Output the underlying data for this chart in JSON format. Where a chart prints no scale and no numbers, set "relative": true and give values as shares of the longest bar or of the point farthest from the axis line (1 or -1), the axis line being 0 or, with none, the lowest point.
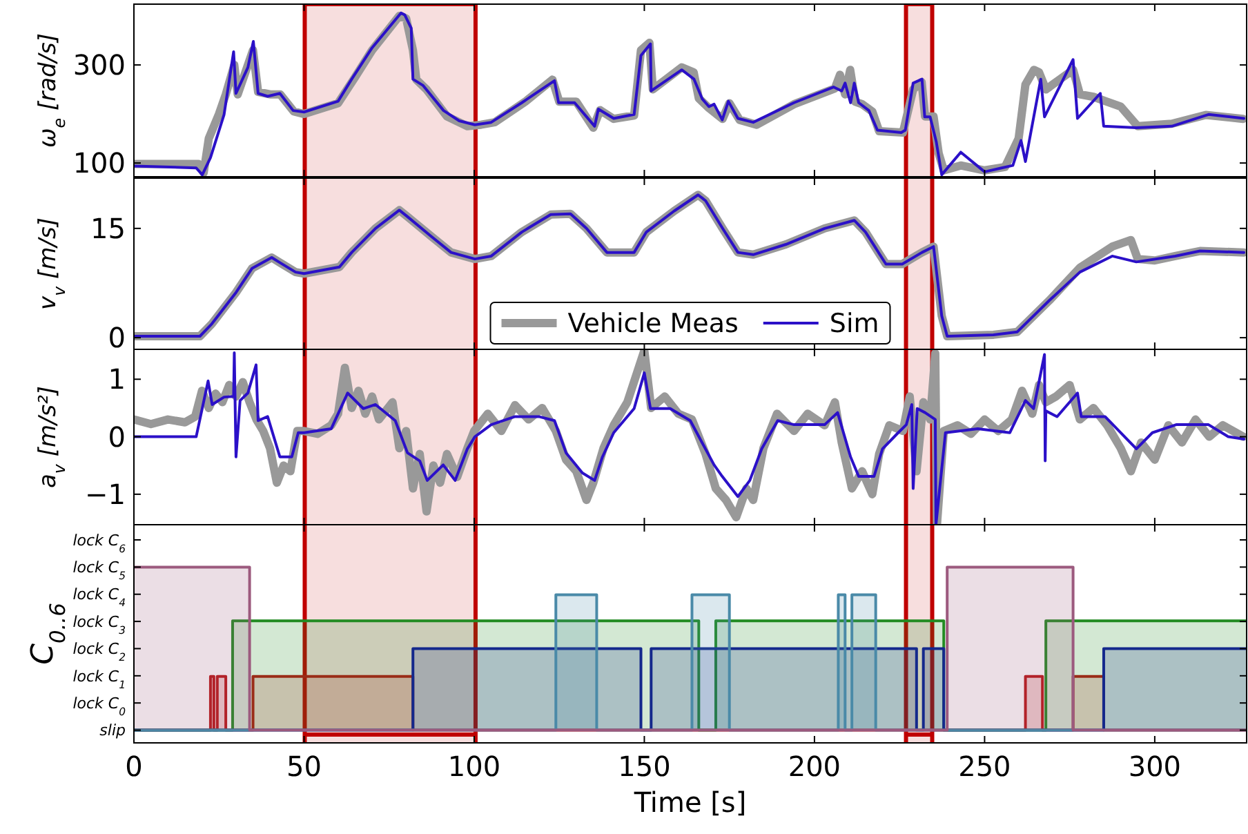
{
  "chart_data": [
    {
      "type": "line",
      "ylabel": "ω$_{e}$ [rad/s]",
      "xlim": [
        0,
        327
      ],
      "xticks": [
        0,
        50,
        100,
        150,
        200,
        250,
        300
      ],
      "ylim": [
        72,
        424
      ],
      "yticks": [
        100,
        300
      ],
      "tick_labels": "y",
      "bands": [
        {
          "axis": "x",
          "from": 50.2,
          "to": 100.4,
          "color": "#c00000"
        },
        {
          "axis": "x",
          "from": 226.9,
          "to": 234.6,
          "color": "#c00000"
        }
      ],
      "series": [
        {
          "color": "#999999",
          "x": [
            0,
            19,
            20.5,
            22,
            25,
            27,
            29.5,
            30.5,
            33,
            35,
            36.5,
            40,
            43,
            47,
            50,
            60,
            65,
            70,
            78,
            80,
            82,
            83,
            86,
            92,
            98,
            102,
            106,
            115,
            123,
            125,
            130,
            135,
            137,
            141,
            147,
            149,
            151.5,
            152.5,
            161,
            164.5,
            166,
            169,
            173,
            175,
            178,
            183,
            194,
            206,
            207.5,
            209,
            210.5,
            212,
            214,
            217,
            219,
            226,
            229,
            231.5,
            232.5,
            235,
            236.5,
            238,
            243,
            250,
            256,
            260,
            262,
            264.5,
            266,
            268,
            272,
            276,
            278,
            282,
            286,
            290,
            295,
            305,
            315,
            326
          ],
          "values": [
            98,
            98,
            80,
            150,
            200,
            240,
            300,
            240,
            290,
            330,
            245,
            240,
            240,
            205,
            200,
            222,
            275,
            330,
            400,
            395,
            330,
            270,
            250,
            195,
            175,
            178,
            183,
            225,
            270,
            225,
            225,
            172,
            208,
            190,
            197,
            330,
            345,
            250,
            295,
            285,
            232,
            212,
            190,
            222,
            188,
            178,
            220,
            252,
            280,
            240,
            290,
            225,
            220,
            205,
            165,
            162,
            250,
            265,
            195,
            195,
            120,
            85,
            95,
            85,
            92,
            150,
            260,
            290,
            285,
            250,
            270,
            290,
            240,
            235,
            225,
            215,
            175,
            180,
            198,
            190
          ]
        },
        {
          "color": "#2b10c8",
          "x": [
            0,
            18.3,
            20.1,
            22.5,
            26.5,
            29.3,
            30,
            33.5,
            35.1,
            36.5,
            39.3,
            42.9,
            46.8,
            50,
            60,
            64,
            70,
            78.5,
            79.6,
            81.5,
            82,
            85,
            91,
            95.6,
            100.2,
            105,
            114,
            123.6,
            124.8,
            129.5,
            135.4,
            136.5,
            141,
            147,
            149,
            151.8,
            152,
            161,
            164.6,
            167,
            169,
            170.5,
            172.9,
            174.7,
            177.5,
            182,
            194,
            205.6,
            208,
            209,
            210.6,
            211.7,
            213,
            216,
            218.5,
            225.5,
            226.7,
            229,
            231.6,
            232.4,
            234,
            235.8,
            237.4,
            243,
            250,
            255,
            258.3,
            260.7,
            262,
            266.5,
            267.6,
            276,
            277.3,
            284,
            285,
            294.6,
            305,
            315.8,
            326.2
          ],
          "values": [
            94,
            90,
            76,
            111,
            199,
            327,
            242,
            295,
            348,
            242,
            236,
            242,
            207,
            204,
            226,
            271,
            335,
            406,
            402,
            375,
            271,
            258,
            207,
            186,
            178,
            183,
            223,
            268,
            223,
            223,
            175,
            210,
            191,
            199,
            319,
            343,
            247,
            290,
            271,
            231,
            215,
            220,
            188,
            226,
            191,
            183,
            223,
            255,
            247,
            263,
            223,
            263,
            223,
            207,
            167,
            162,
            167,
            263,
            271,
            194,
            194,
            143,
            76,
            122,
            82,
            90,
            95,
            146,
            103,
            271,
            194,
            311,
            191,
            242,
            175,
            172,
            175,
            199,
            191
          ]
        }
      ]
    },
    {
      "type": "line",
      "ylabel": "v$_{v}$ [m/s]",
      "xlim": [
        0,
        327
      ],
      "xticks": [
        0,
        50,
        100,
        150,
        200,
        250,
        300
      ],
      "ylim": [
        -1.6,
        21.9
      ],
      "yticks": [
        0,
        15
      ],
      "tick_labels": "y",
      "legend": "bottom",
      "bands": [
        {
          "axis": "x",
          "from": 50.2,
          "to": 100.4,
          "color": "#c00000"
        },
        {
          "axis": "x",
          "from": 226.9,
          "to": 234.6,
          "color": "#c00000"
        }
      ],
      "series": [
        {
          "name": "Vehicle Meas",
          "color": "#999999",
          "x": [
            0,
            19.4,
            22.9,
            30,
            34.7,
            40.5,
            42.9,
            47.5,
            50,
            60.4,
            64,
            71,
            78,
            80.4,
            87.4,
            93.2,
            100.2,
            105,
            114,
            122.5,
            128.3,
            133,
            139,
            147,
            150.6,
            158.8,
            165.8,
            168,
            173,
            177.5,
            182,
            191.6,
            203,
            211.7,
            215,
            221,
            225.8,
            231.6,
            235,
            237.4,
            239,
            252.6,
            259.6,
            269,
            278,
            287.5,
            293,
            295,
            300,
            306,
            313.3,
            326.2
          ],
          "values": [
            0.2,
            0.2,
            1.9,
            6.2,
            9.5,
            11,
            10.3,
            9,
            8.8,
            9.7,
            11.7,
            15,
            17.5,
            16.6,
            13.9,
            11.7,
            10.8,
            11.2,
            14.5,
            16.9,
            17,
            15,
            11.7,
            11.7,
            14.5,
            17.4,
            19.6,
            18.8,
            15,
            11.7,
            11.4,
            12.8,
            15,
            16.1,
            14.5,
            10.1,
            10.1,
            11.7,
            12.5,
            3,
            0.2,
            0.4,
            0.8,
            5.1,
            9.6,
            12.5,
            13.4,
            10.8,
            10.6,
            11.2,
            11.9,
            11.7
          ]
        },
        {
          "name": "Sim",
          "color": "#2b10c8",
          "x": [
            0,
            19.4,
            22.9,
            30,
            34.7,
            40.5,
            42.9,
            47.5,
            50,
            60.4,
            64,
            71,
            78,
            80.4,
            87.4,
            93.2,
            100.2,
            105,
            114,
            122.5,
            128.3,
            133,
            139,
            147,
            150.6,
            158.8,
            165.8,
            168,
            173,
            177.5,
            182,
            191.6,
            203,
            211.7,
            215,
            221,
            225.8,
            231.6,
            235,
            237.4,
            239,
            252.6,
            259.6,
            269,
            278,
            287.5,
            294.6,
            306,
            313.3,
            326.2
          ],
          "values": [
            0.2,
            0.2,
            1.9,
            6.2,
            9.5,
            11,
            10.3,
            9,
            8.8,
            9.7,
            11.7,
            15,
            17.5,
            16.6,
            13.9,
            11.7,
            10.8,
            11.2,
            14.5,
            16.9,
            17,
            15,
            11.7,
            11.7,
            14.5,
            17.4,
            19.6,
            18.8,
            15,
            11.7,
            11.4,
            12.8,
            15,
            16.1,
            14.5,
            10.1,
            10.1,
            11.7,
            12.5,
            3,
            0.2,
            0.4,
            0.8,
            5.1,
            9,
            11.2,
            10.4,
            11.2,
            11.9,
            11.7
          ]
        }
      ]
    },
    {
      "type": "line",
      "ylabel": "a$_{v}$ [m/s²]",
      "xlim": [
        0,
        327
      ],
      "xticks": [
        0,
        50,
        100,
        150,
        200,
        250,
        300
      ],
      "ylim": [
        -1.53,
        1.52
      ],
      "yticks": [
        -1,
        0,
        1
      ],
      "tick_labels": "y",
      "bands": [
        {
          "axis": "x",
          "from": 50.2,
          "to": 100.4,
          "color": "#c00000"
        },
        {
          "axis": "x",
          "from": 226.9,
          "to": 234.6,
          "color": "#c00000"
        }
      ],
      "series": [
        {
          "color": "#999999",
          "x": [
            0,
            5,
            10,
            15,
            18,
            20,
            22,
            24,
            26,
            28,
            30,
            32,
            34,
            36,
            38,
            40,
            42,
            44,
            46,
            48,
            50,
            54,
            58,
            60,
            62,
            64,
            66,
            68,
            70,
            72,
            76,
            78,
            80,
            82,
            84,
            86,
            88,
            90,
            92,
            95,
            98,
            100,
            104,
            108,
            112,
            116,
            120,
            124,
            127,
            130,
            133,
            135,
            138,
            141,
            145,
            150,
            152,
            156,
            160,
            164,
            168,
            171,
            174,
            177,
            180,
            182,
            185,
            189,
            194,
            198,
            203,
            206,
            208,
            211,
            214,
            217,
            219,
            222,
            226,
            228,
            230,
            232,
            234,
            235.5,
            236,
            238,
            242,
            246,
            250,
            254,
            258,
            261,
            264,
            266,
            268,
            271,
            275,
            278,
            282,
            286,
            290,
            293,
            296,
            300,
            304,
            308,
            312,
            316,
            320,
            326
          ],
          "values": [
            0.3,
            0.22,
            0.3,
            0.25,
            0.35,
            0.8,
            0.5,
            0.75,
            0.6,
            0.9,
            0.7,
            0.95,
            0.6,
            0.3,
            0.1,
            -0.2,
            -0.8,
            -0.5,
            -0.6,
            0.1,
            0.1,
            0.05,
            0.2,
            0.4,
            1.2,
            0.5,
            0.8,
            0.4,
            0.7,
            0.3,
            0.6,
            -0.2,
            0.1,
            -0.9,
            -0.3,
            -1.3,
            -0.5,
            -0.8,
            -0.3,
            -0.7,
            -0.2,
            0.1,
            0.4,
            0.1,
            0.55,
            0.3,
            0.5,
            0.1,
            -0.4,
            -0.6,
            -1.1,
            -0.8,
            -0.2,
            0.2,
            0.6,
            1.5,
            0.5,
            0.7,
            0.4,
            0.3,
            -0.3,
            -0.9,
            -1.1,
            -1.4,
            -0.9,
            -1.1,
            -0.2,
            0.4,
            0.1,
            0.4,
            0.2,
            0.6,
            -0.1,
            -0.9,
            -0.6,
            -1.0,
            -0.3,
            0.2,
            0.1,
            0.7,
            -0.6,
            0.6,
            0.3,
            1.45,
            -1.53,
            0.1,
            0.2,
            0.05,
            0.3,
            0.1,
            0.3,
            0.8,
            0.4,
            0.9,
            0.6,
            0.7,
            0.9,
            0.3,
            0.5,
            0.2,
            -0.2,
            -0.6,
            -0.1,
            -0.4,
            0.2,
            -0.1,
            0.3,
            0.0,
            0.2,
            0.0
          ]
        },
        {
          "color": "#2b10c8",
          "x": [
            0,
            18.3,
            21.8,
            23,
            26.5,
            29.3,
            29.5,
            30,
            31.2,
            33.5,
            35.9,
            36.5,
            39.3,
            42.9,
            46.4,
            48.3,
            50,
            58,
            62.8,
            67.4,
            71,
            76.8,
            80.4,
            84,
            86.2,
            90.9,
            94.4,
            98,
            100.2,
            105,
            112,
            119,
            123.6,
            127,
            131.8,
            135.4,
            137.7,
            141,
            147,
            150,
            151.8,
            157.6,
            163.5,
            170.5,
            172.9,
            177.5,
            181,
            184.5,
            189.2,
            194,
            203,
            206.8,
            210.6,
            213,
            217.5,
            220,
            224.6,
            227,
            228.6,
            229,
            230.2,
            232.5,
            235.5,
            235.7,
            238.5,
            248,
            257.4,
            262,
            264.4,
            267.6,
            267.8,
            268,
            271.3,
            277.3,
            278.4,
            285.4,
            294.6,
            299.3,
            306.3,
            315.8,
            321.6,
            326.2
          ],
          "values": [
            0,
            0,
            0.97,
            0.56,
            0.69,
            0.7,
            1.46,
            -0.35,
            0.63,
            0.76,
            1.25,
            0.28,
            0.35,
            -0.35,
            -0.35,
            0.07,
            0.07,
            0.14,
            0.76,
            0.49,
            0.56,
            0.28,
            -0.28,
            -0.42,
            -0.76,
            -0.49,
            -0.76,
            -0.21,
            0,
            0.21,
            0.35,
            0.35,
            0.28,
            -0.28,
            -0.63,
            -0.76,
            -0.35,
            0.07,
            0.49,
            1.11,
            0.49,
            0.49,
            0.28,
            -0.49,
            -0.69,
            -1.04,
            -0.76,
            -0.21,
            0.28,
            0.21,
            0.21,
            0.42,
            -0.35,
            -0.69,
            -0.69,
            -0.21,
            0.07,
            0.21,
            0.56,
            -0.9,
            0.49,
            0.42,
            0.3,
            -1.53,
            0.07,
            0.14,
            0.07,
            0.63,
            0.49,
            1.43,
            -0.42,
            0.45,
            0.35,
            0.76,
            0.35,
            0.35,
            -0.21,
            0.07,
            0.21,
            0.21,
            0,
            -0.04
          ]
        }
      ]
    },
    {
      "type": "area",
      "ylabel": "C$_{0..6}$",
      "xlabel": "Time [s]",
      "xlim": [
        0,
        327
      ],
      "xticks": [
        0,
        50,
        100,
        150,
        200,
        250,
        300
      ],
      "relative": true,
      "annotations": [
        "slip",
        "lock C$_{0}$",
        "lock C$_{1}$",
        "lock C$_{2}$",
        "lock C$_{3}$",
        "lock C$_{4}$",
        "lock C$_{5}$",
        "lock C$_{6}$"
      ],
      "bands": [
        {
          "axis": "x",
          "from": 50.2,
          "to": 100.4,
          "color": "#c00000"
        },
        {
          "axis": "x",
          "from": 226.9,
          "to": 234.6,
          "color": "#c00000"
        }
      ],
      "series": [
        {
          "color": "#b81414",
          "x": [
            0,
            22.5,
            22.5,
            23.5,
            23.5,
            24.5,
            24.5,
            27,
            27,
            35,
            35,
            82,
            82,
            262,
            262,
            267,
            267,
            276,
            276,
            285,
            285,
            327
          ],
          "values": [
            0,
            0,
            0.33,
            0.33,
            0,
            0,
            0.33,
            0.33,
            0,
            0,
            0.33,
            0.33,
            0,
            0,
            0.33,
            0.33,
            0,
            0,
            0.33,
            0.33,
            0,
            0
          ]
        },
        {
          "color": "#228b22",
          "x": [
            0,
            29,
            29,
            166,
            166,
            171,
            171,
            238,
            238,
            268,
            268,
            327
          ],
          "values": [
            0,
            0,
            0.67,
            0.67,
            0,
            0,
            0.67,
            0.67,
            0,
            0,
            0.67,
            0.67
          ]
        },
        {
          "color": "#14288c",
          "x": [
            0,
            82,
            82,
            149,
            149,
            152,
            152,
            230,
            230,
            232,
            232,
            238,
            238,
            285,
            285,
            327
          ],
          "values": [
            0,
            0,
            0.5,
            0.5,
            0,
            0,
            0.5,
            0.5,
            0,
            0,
            0.5,
            0.5,
            0,
            0,
            0.5,
            0.5
          ]
        },
        {
          "color": "#4a8aa8",
          "x": [
            0,
            124,
            124,
            136,
            136,
            164,
            164,
            175,
            175,
            207,
            207,
            209,
            209,
            211,
            211,
            218,
            218,
            327
          ],
          "values": [
            0,
            0,
            0.83,
            0.83,
            0,
            0,
            0.83,
            0.83,
            0,
            0,
            0.83,
            0.83,
            0,
            0,
            0.83,
            0.83,
            0,
            0
          ]
        },
        {
          "color": "#9c5a7e",
          "x": [
            0,
            34,
            34,
            239,
            239,
            276,
            276,
            327
          ],
          "values": [
            1,
            1,
            0,
            0,
            1,
            1,
            0,
            0
          ]
        }
      ]
    }
  ]
}
